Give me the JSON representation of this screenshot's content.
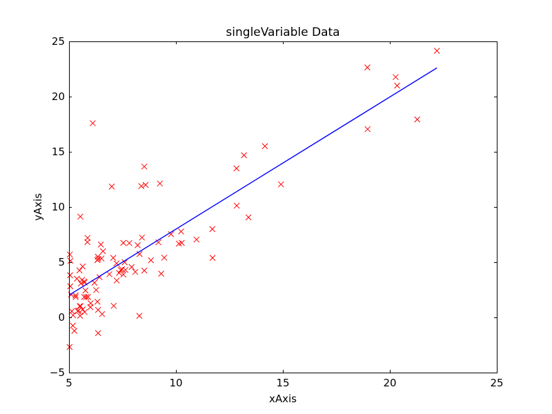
{
  "chart_data": {
    "type": "scatter",
    "title": "singleVariable Data",
    "xlabel": "xAxis",
    "ylabel": "yAxis",
    "xlim": [
      5,
      25
    ],
    "ylim": [
      -5,
      25
    ],
    "xticks": [
      5,
      10,
      15,
      20,
      25
    ],
    "yticks": [
      -5,
      0,
      5,
      10,
      15,
      20,
      25
    ],
    "grid": false,
    "series": [
      {
        "marker": "x",
        "color": "#ff0000",
        "points": [
          [
            6.11,
            17.59
          ],
          [
            5.53,
            9.13
          ],
          [
            8.52,
            13.66
          ],
          [
            7.0,
            11.85
          ],
          [
            5.86,
            6.82
          ],
          [
            8.38,
            11.89
          ],
          [
            7.48,
            4.35
          ],
          [
            8.58,
            12.0
          ],
          [
            6.49,
            6.6
          ],
          [
            5.05,
            3.82
          ],
          [
            5.71,
            3.25
          ],
          [
            14.16,
            15.51
          ],
          [
            5.73,
            3.16
          ],
          [
            8.41,
            7.23
          ],
          [
            5.64,
            0.72
          ],
          [
            5.37,
            3.51
          ],
          [
            6.37,
            5.3
          ],
          [
            5.13,
            0.56
          ],
          [
            6.43,
            3.65
          ],
          [
            7.07,
            5.39
          ],
          [
            6.19,
            3.14
          ],
          [
            20.27,
            21.77
          ],
          [
            5.49,
            4.26
          ],
          [
            6.33,
            5.19
          ],
          [
            5.56,
            3.08
          ],
          [
            18.95,
            22.64
          ],
          [
            12.83,
            13.5
          ],
          [
            10.96,
            7.05
          ],
          [
            13.18,
            14.69
          ],
          [
            22.2,
            24.15
          ],
          [
            5.25,
            -1.22
          ],
          [
            6.59,
            5.99
          ],
          [
            9.25,
            12.13
          ],
          [
            5.89,
            1.85
          ],
          [
            8.21,
            6.54
          ],
          [
            7.93,
            4.56
          ],
          [
            8.1,
            4.12
          ],
          [
            5.61,
            3.39
          ],
          [
            12.84,
            10.12
          ],
          [
            6.35,
            5.5
          ],
          [
            5.41,
            0.56
          ],
          [
            6.89,
            3.91
          ],
          [
            11.71,
            5.39
          ],
          [
            5.77,
            2.44
          ],
          [
            7.82,
            6.73
          ],
          [
            7.09,
            1.05
          ],
          [
            5.07,
            5.13
          ],
          [
            5.8,
            1.84
          ],
          [
            11.7,
            8.0
          ],
          [
            5.54,
            1.02
          ],
          [
            7.54,
            6.75
          ],
          [
            5.31,
            1.84
          ],
          [
            7.42,
            4.29
          ],
          [
            7.6,
            4.99
          ],
          [
            6.33,
            1.42
          ],
          [
            6.36,
            -1.42
          ],
          [
            6.27,
            2.48
          ],
          [
            5.64,
            4.61
          ],
          [
            9.31,
            3.96
          ],
          [
            9.45,
            5.41
          ],
          [
            8.83,
            5.17
          ],
          [
            5.18,
            -0.74
          ],
          [
            21.28,
            17.93
          ],
          [
            14.91,
            12.05
          ],
          [
            18.96,
            17.05
          ],
          [
            7.22,
            4.89
          ],
          [
            8.3,
            5.74
          ],
          [
            10.24,
            7.78
          ],
          [
            5.5,
            1.02
          ],
          [
            20.34,
            20.99
          ],
          [
            10.14,
            6.68
          ],
          [
            7.34,
            4.03
          ],
          [
            6.01,
            1.28
          ],
          [
            7.23,
            3.34
          ],
          [
            5.03,
            -2.68
          ],
          [
            6.55,
            0.3
          ],
          [
            7.54,
            3.88
          ],
          [
            5.04,
            5.7
          ],
          [
            10.27,
            6.75
          ],
          [
            5.1,
            2.06
          ],
          [
            5.73,
            0.48
          ],
          [
            5.19,
            0.2
          ],
          [
            6.36,
            0.68
          ],
          [
            9.77,
            7.54
          ],
          [
            6.52,
            5.34
          ],
          [
            8.52,
            4.24
          ],
          [
            9.18,
            6.8
          ],
          [
            6.0,
            0.93
          ],
          [
            5.52,
            0.15
          ],
          [
            5.06,
            2.82
          ],
          [
            5.71,
            1.85
          ],
          [
            7.64,
            4.3
          ],
          [
            5.87,
            7.2
          ],
          [
            5.31,
            1.99
          ],
          [
            8.29,
            0.14
          ],
          [
            13.39,
            9.06
          ],
          [
            5.44,
            0.62
          ]
        ]
      },
      {
        "type": "line",
        "color": "#0000ff",
        "points": [
          [
            5.03,
            2.05
          ],
          [
            22.2,
            22.6
          ]
        ]
      }
    ]
  }
}
